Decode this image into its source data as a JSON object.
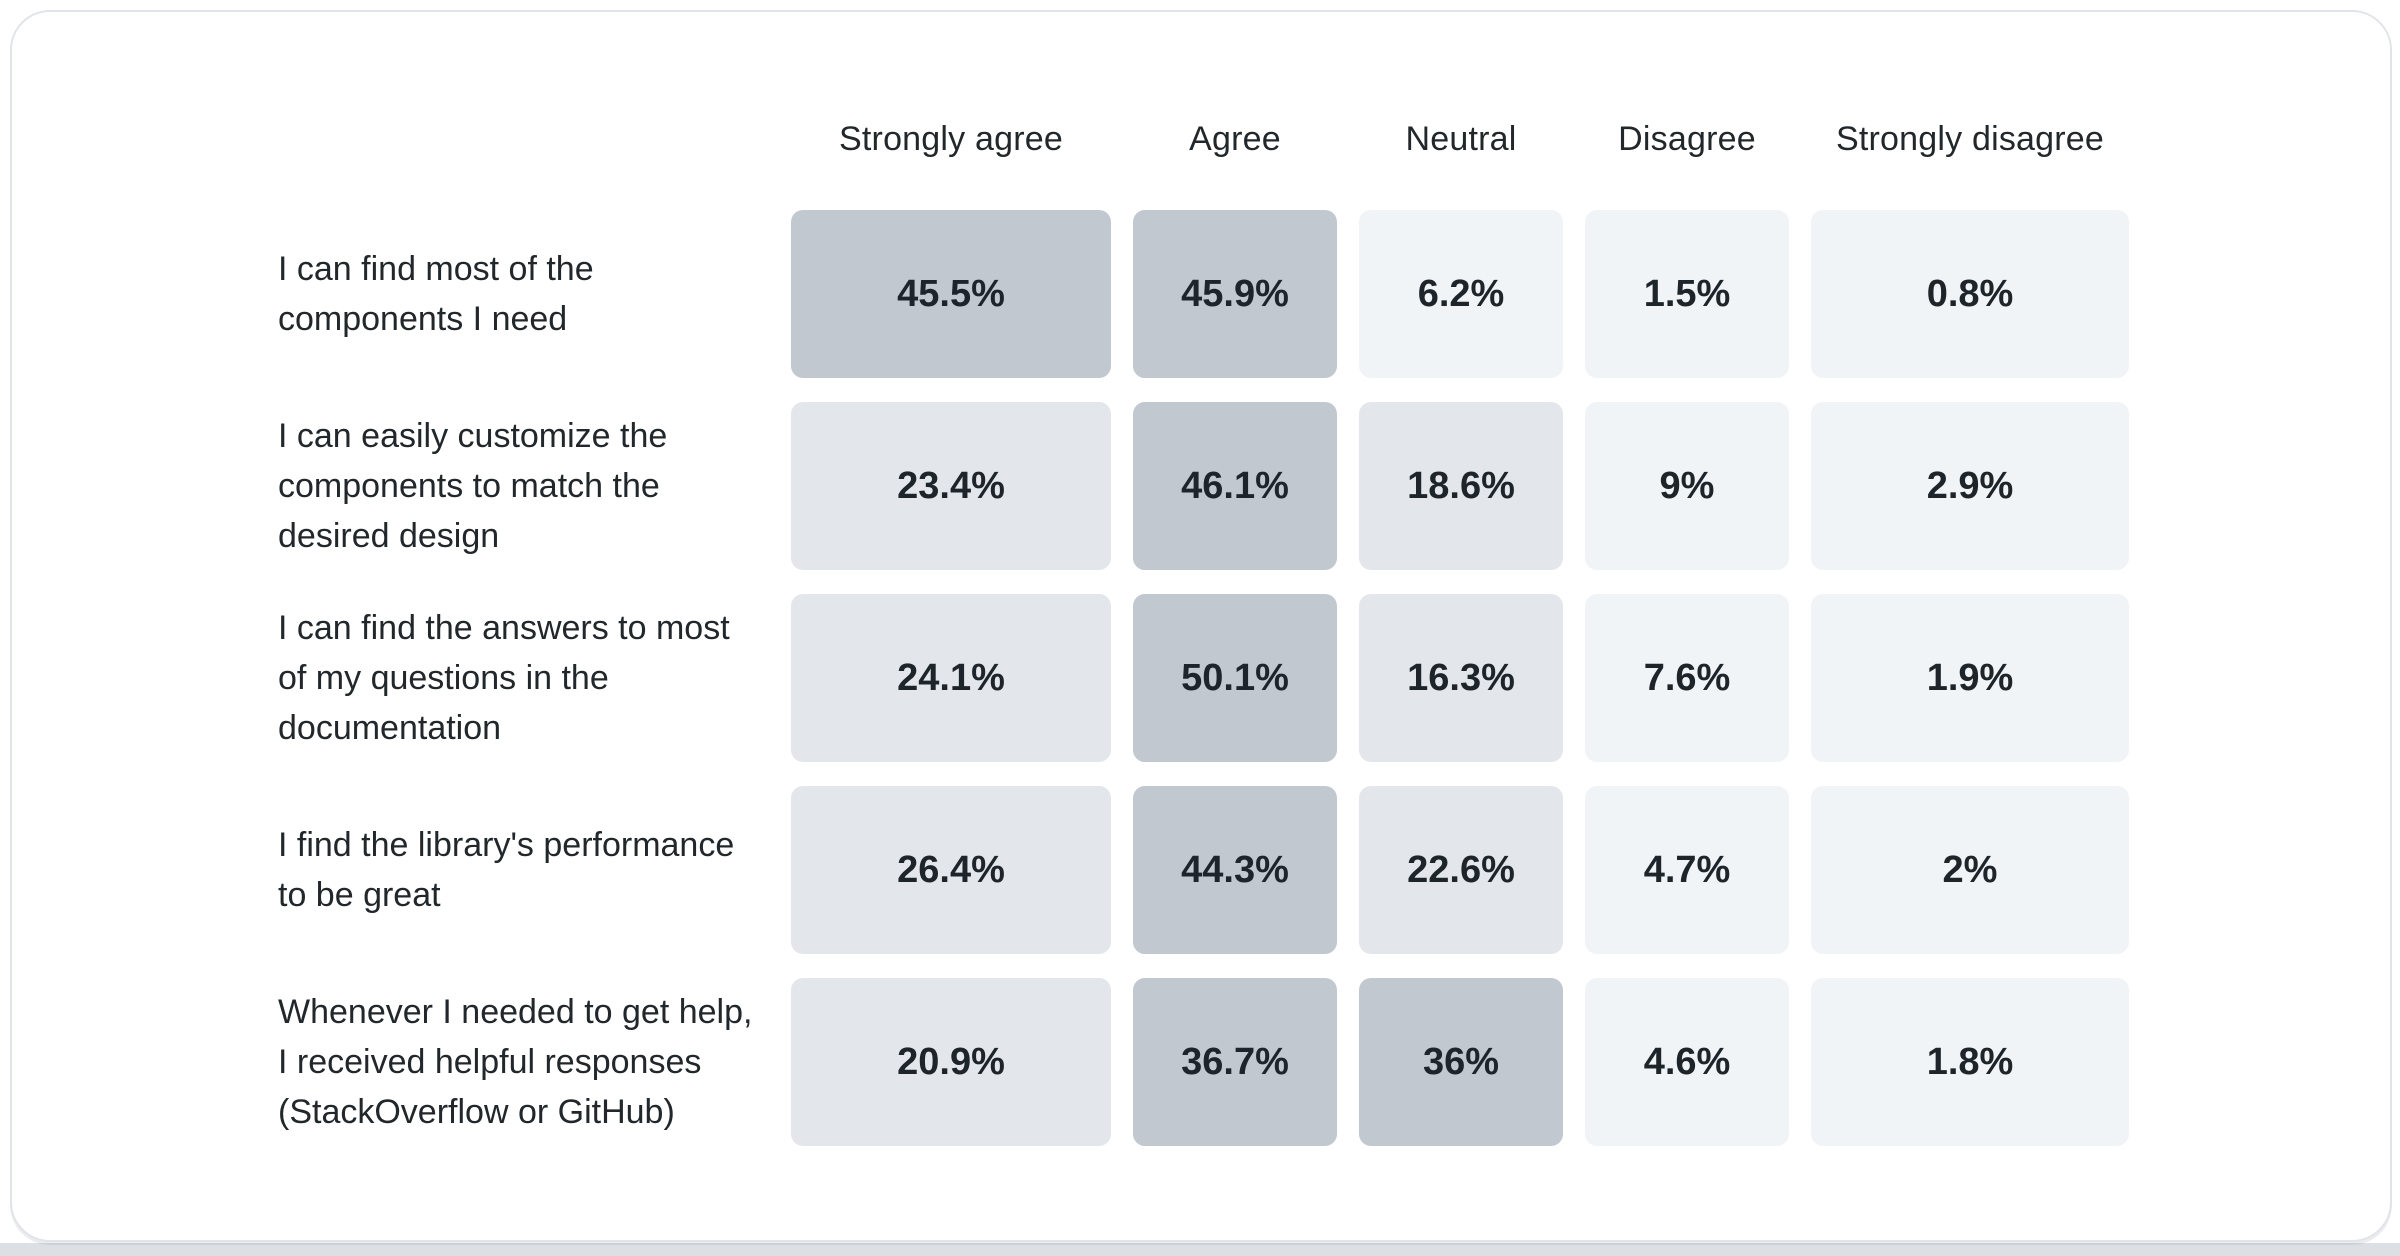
{
  "page": {
    "background": "#ffffff",
    "card_background": "#ffffff",
    "card_border_color": "#e1e4e8",
    "bottom_strip_color": "#dce0e4"
  },
  "chart_data": {
    "type": "heatmap",
    "title": "",
    "legend_position": "none",
    "grid": false,
    "columns": [
      "Strongly agree",
      "Agree",
      "Neutral",
      "Disagree",
      "Strongly disagree"
    ],
    "rows": [
      {
        "label": "I can find most of the components I need",
        "values": [
          45.5,
          45.9,
          6.2,
          1.5,
          0.8
        ],
        "display": [
          "45.5%",
          "45.9%",
          "6.2%",
          "1.5%",
          "0.8%"
        ]
      },
      {
        "label": "I can easily customize the components to match the desired design",
        "values": [
          23.4,
          46.1,
          18.6,
          9,
          2.9
        ],
        "display": [
          "23.4%",
          "46.1%",
          "18.6%",
          "9%",
          "2.9%"
        ]
      },
      {
        "label": "I can find the answers to most of my questions in the documentation",
        "values": [
          24.1,
          50.1,
          16.3,
          7.6,
          1.9
        ],
        "display": [
          "24.1%",
          "50.1%",
          "16.3%",
          "7.6%",
          "1.9%"
        ]
      },
      {
        "label": "I find the library's performance to be great",
        "values": [
          26.4,
          44.3,
          22.6,
          4.7,
          2
        ],
        "display": [
          "26.4%",
          "44.3%",
          "22.6%",
          "4.7%",
          "2%"
        ]
      },
      {
        "label": "Whenever I needed to get help, I received helpful responses (StackOverflow or GitHub)",
        "values": [
          20.9,
          36.7,
          36,
          4.6,
          1.8
        ],
        "display": [
          "20.9%",
          "36.7%",
          "36%",
          "4.6%",
          "1.8%"
        ]
      }
    ],
    "color_scale": {
      "light": "#f0f4f7",
      "medium": "#e3e7ec",
      "dark": "#c1c8d0",
      "thresholds": [
        10,
        30
      ],
      "text_color": "#1d242a"
    }
  }
}
